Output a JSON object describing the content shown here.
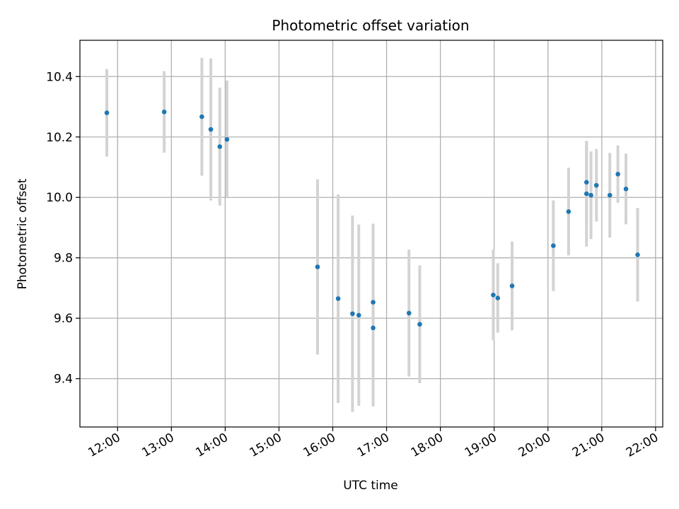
{
  "chart_data": {
    "type": "scatter",
    "title": "Photometric offset variation",
    "xlabel": "UTC time",
    "ylabel": "Photometric offset",
    "grid": true,
    "xlim": [
      "11:18",
      "22:08"
    ],
    "ylim": [
      9.24,
      10.52
    ],
    "x_ticks": [
      "12:00",
      "13:00",
      "14:00",
      "15:00",
      "16:00",
      "17:00",
      "18:00",
      "19:00",
      "20:00",
      "21:00",
      "22:00"
    ],
    "y_ticks": [
      "9.4",
      "9.6",
      "9.8",
      "10.0",
      "10.2",
      "10.4"
    ],
    "colors": {
      "point": "#1f77b4",
      "errorbar": "#d3d3d3",
      "grid": "#b0b0b0"
    },
    "series": [
      {
        "points": [
          {
            "x": "11:48",
            "y": 10.28,
            "err": 0.145
          },
          {
            "x": "12:52",
            "y": 10.283,
            "err": 0.135
          },
          {
            "x": "13:34",
            "y": 10.267,
            "err": 0.195
          },
          {
            "x": "13:44",
            "y": 10.225,
            "err": 0.235
          },
          {
            "x": "13:54",
            "y": 10.168,
            "err": 0.195
          },
          {
            "x": "14:02",
            "y": 10.192,
            "err": 0.195
          },
          {
            "x": "15:43",
            "y": 9.77,
            "err": 0.29
          },
          {
            "x": "16:06",
            "y": 9.665,
            "err": 0.345
          },
          {
            "x": "16:22",
            "y": 9.615,
            "err": 0.325
          },
          {
            "x": "16:29",
            "y": 9.61,
            "err": 0.3
          },
          {
            "x": "16:45",
            "y": 9.653,
            "err": 0.26
          },
          {
            "x": "16:45",
            "y": 9.568,
            "err": 0.26
          },
          {
            "x": "17:25",
            "y": 9.617,
            "err": 0.21
          },
          {
            "x": "17:37",
            "y": 9.58,
            "err": 0.195
          },
          {
            "x": "18:59",
            "y": 9.677,
            "err": 0.15
          },
          {
            "x": "19:04",
            "y": 9.667,
            "err": 0.115
          },
          {
            "x": "19:20",
            "y": 9.707,
            "err": 0.147
          },
          {
            "x": "20:06",
            "y": 9.84,
            "err": 0.15
          },
          {
            "x": "20:23",
            "y": 9.953,
            "err": 0.145
          },
          {
            "x": "20:43",
            "y": 10.05,
            "err": 0.135
          },
          {
            "x": "20:43",
            "y": 10.012,
            "err": 0.175
          },
          {
            "x": "20:48",
            "y": 10.007,
            "err": 0.145
          },
          {
            "x": "20:54",
            "y": 10.04,
            "err": 0.12
          },
          {
            "x": "21:09",
            "y": 10.007,
            "err": 0.14
          },
          {
            "x": "21:18",
            "y": 10.077,
            "err": 0.095
          },
          {
            "x": "21:27",
            "y": 10.028,
            "err": 0.117
          },
          {
            "x": "21:40",
            "y": 9.81,
            "err": 0.155
          }
        ]
      }
    ]
  }
}
